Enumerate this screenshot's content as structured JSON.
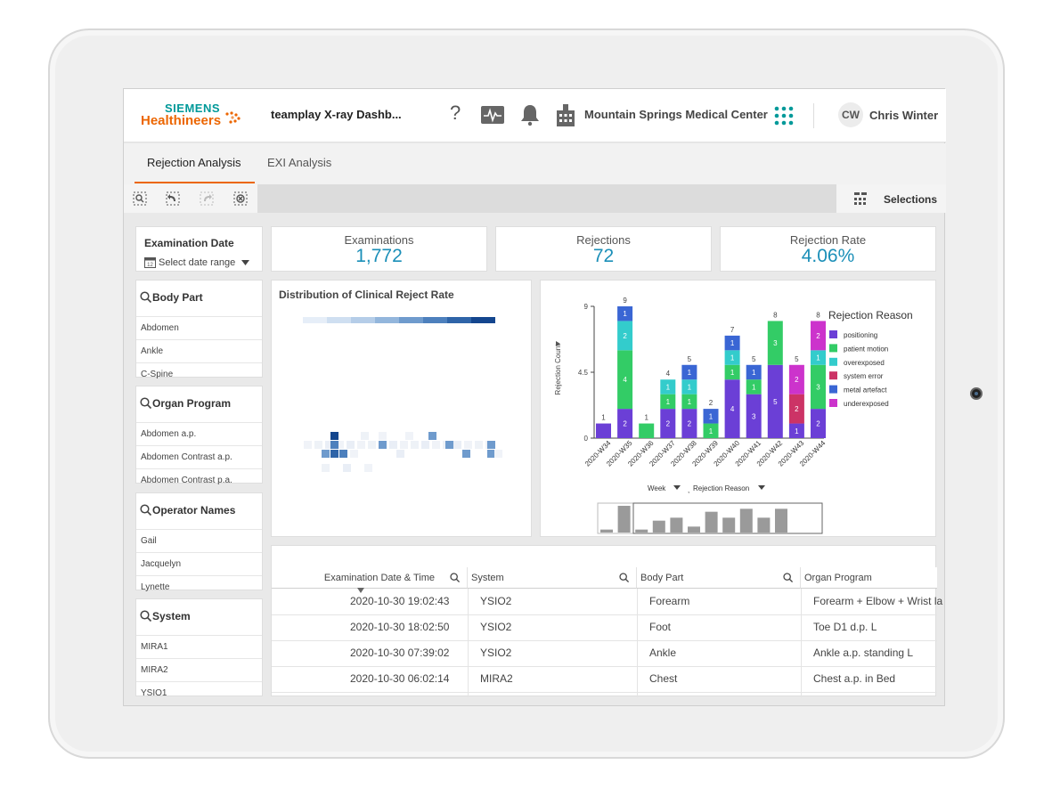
{
  "header": {
    "brand_top": "SIEMENS",
    "brand_bottom": "Healthineers",
    "app_title": "teamplay X-ray Dashb...",
    "facility": "Mountain Springs Medical Center",
    "user_initials": "CW",
    "user_name": "Chris Winter",
    "help_glyph": "?"
  },
  "icons": [
    "help-icon",
    "activity-monitor-icon",
    "bell-icon",
    "hospital-icon",
    "apps-grid-icon",
    "search-icon",
    "calendar-icon",
    "selections-icon"
  ],
  "tabs": [
    {
      "label": "Rejection Analysis",
      "active": true
    },
    {
      "label": "EXI Analysis",
      "active": false
    }
  ],
  "toolbar": {
    "selections_label": "Selections"
  },
  "filters": {
    "date": {
      "title": "Examination Date",
      "value": "Select date range"
    },
    "body_part": {
      "title": "Body Part",
      "items": [
        "Abdomen",
        "Ankle",
        "C-Spine"
      ]
    },
    "organ_program": {
      "title": "Organ Program",
      "items": [
        "Abdomen a.p.",
        "Abdomen Contrast a.p.",
        "Abdomen Contrast p.a."
      ]
    },
    "operator_names": {
      "title": "Operator Names",
      "items": [
        "Gail",
        "Jacquelyn",
        "Lynette"
      ]
    },
    "system": {
      "title": "System",
      "items": [
        "MIRA1",
        "MIRA2",
        "YSIO1"
      ]
    }
  },
  "kpis": [
    {
      "label": "Examinations",
      "value": "1,772"
    },
    {
      "label": "Rejections",
      "value": "72"
    },
    {
      "label": "Rejection Rate",
      "value": "4.06%"
    }
  ],
  "heatmap": {
    "title": "Distribution of Clinical Reject Rate"
  },
  "chart_data": {
    "type": "bar",
    "stacked": true,
    "title": "",
    "xlabel": "Week",
    "ylabel": "Rejection Count",
    "ylim": [
      0,
      9
    ],
    "y_ticks": [
      "0",
      "4.5",
      "9"
    ],
    "categories": [
      "2020-W34",
      "2020-W35",
      "2020-W36",
      "2020-W37",
      "2020-W38",
      "2020-W39",
      "2020-W40",
      "2020-W41",
      "2020-W42",
      "2020-W43",
      "2020-W44"
    ],
    "totals": [
      1,
      9,
      1,
      4,
      5,
      2,
      7,
      5,
      8,
      5,
      8
    ],
    "legend_title": "Rejection Reason",
    "legend_position": "right",
    "series": [
      {
        "name": "positioning",
        "color": "#6b3fd6",
        "values": [
          1,
          2,
          0,
          2,
          2,
          0,
          4,
          3,
          5,
          1,
          2
        ]
      },
      {
        "name": "patient motion",
        "color": "#33cc66",
        "values": [
          0,
          4,
          1,
          1,
          1,
          1,
          1,
          1,
          3,
          0,
          3
        ]
      },
      {
        "name": "overexposed",
        "color": "#33cccc",
        "values": [
          0,
          2,
          0,
          1,
          1,
          0,
          1,
          0,
          0,
          0,
          1
        ]
      },
      {
        "name": "system error",
        "color": "#cc3366",
        "values": [
          0,
          0,
          0,
          0,
          0,
          0,
          0,
          0,
          0,
          2,
          0
        ]
      },
      {
        "name": "metal artefact",
        "color": "#3a66d4",
        "values": [
          0,
          1,
          0,
          0,
          1,
          1,
          1,
          1,
          0,
          0,
          0
        ]
      },
      {
        "name": "underexposed",
        "color": "#cc33cc",
        "values": [
          0,
          0,
          0,
          0,
          0,
          0,
          0,
          0,
          0,
          2,
          2
        ]
      }
    ],
    "dimension_controls": [
      "Week",
      "Rejection Reason"
    ],
    "dimension_separator": ","
  },
  "table": {
    "columns": [
      "Examination Date & Time",
      "System",
      "Body Part",
      "Organ Program"
    ],
    "rows": [
      [
        "2020-10-30 19:02:43",
        "YSIO2",
        "Forearm",
        "Forearm + Elbow + Wrist la"
      ],
      [
        "2020-10-30 18:02:50",
        "YSIO2",
        "Foot",
        "Toe D1 d.p. L"
      ],
      [
        "2020-10-30 07:39:02",
        "YSIO2",
        "Ankle",
        "Ankle a.p. standing L"
      ],
      [
        "2020-10-30 06:02:14",
        "MIRA2",
        "Chest",
        "Chest a.p. in Bed"
      ]
    ]
  }
}
